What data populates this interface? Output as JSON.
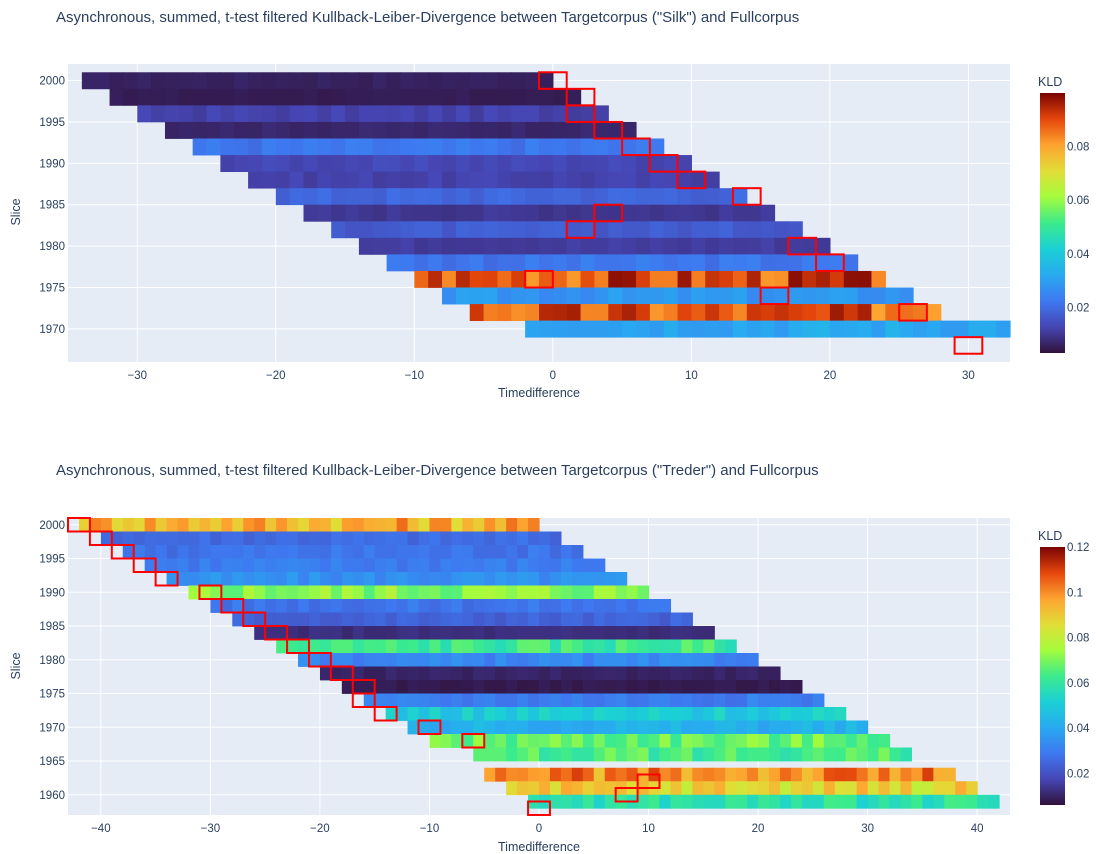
{
  "chart_data": [
    {
      "type": "heatmap",
      "title": "Asynchronous, summed, t-test filtered Kullback-Leiber-Divergence between Targetcorpus (\"Silk\") and Fullcorpus",
      "xlabel": "Timedifference",
      "ylabel": "Slice",
      "x_range": [
        -35,
        33
      ],
      "y_range": [
        1966,
        2002
      ],
      "x_ticks": [
        -30,
        -20,
        -10,
        0,
        10,
        20,
        30
      ],
      "y_ticks": [
        2000,
        1995,
        1990,
        1985,
        1980,
        1975,
        1970
      ],
      "colorbar": {
        "title": "KLD",
        "min": 0.003,
        "max": 0.1,
        "ticks": [
          0.02,
          0.04,
          0.06,
          0.08
        ]
      },
      "rows": [
        {
          "slice": 2000,
          "start": -34,
          "end": 0,
          "kld": 0.006
        },
        {
          "slice": 1998,
          "start": -32,
          "end": 2,
          "kld": 0.005
        },
        {
          "slice": 1996,
          "start": -30,
          "end": 4,
          "kld": 0.012
        },
        {
          "slice": 1994,
          "start": -28,
          "end": 6,
          "kld": 0.007
        },
        {
          "slice": 1992,
          "start": -26,
          "end": 8,
          "kld": 0.022
        },
        {
          "slice": 1990,
          "start": -24,
          "end": 10,
          "kld": 0.013
        },
        {
          "slice": 1988,
          "start": -22,
          "end": 12,
          "kld": 0.012
        },
        {
          "slice": 1986,
          "start": -20,
          "end": 14,
          "kld": 0.019
        },
        {
          "slice": 1984,
          "start": -18,
          "end": 16,
          "kld": 0.01
        },
        {
          "slice": 1982,
          "start": -16,
          "end": 18,
          "kld": 0.017
        },
        {
          "slice": 1980,
          "start": -14,
          "end": 20,
          "kld": 0.011
        },
        {
          "slice": 1978,
          "start": -12,
          "end": 22,
          "kld": 0.022
        },
        {
          "slice": 1976,
          "start": -10,
          "end": 24,
          "kld": 0.09
        },
        {
          "slice": 1974,
          "start": -8,
          "end": 26,
          "kld": 0.028
        },
        {
          "slice": 1972,
          "start": -6,
          "end": 28,
          "kld": 0.088
        },
        {
          "slice": 1970,
          "start": -2,
          "end": 33,
          "kld": 0.032
        }
      ],
      "highlights": [
        {
          "x": 0,
          "slice": 2000
        },
        {
          "x": 2,
          "slice": 1998
        },
        {
          "x": 2,
          "slice": 1996
        },
        {
          "x": 4,
          "slice": 1994
        },
        {
          "x": 6,
          "slice": 1992
        },
        {
          "x": 8,
          "slice": 1990
        },
        {
          "x": 10,
          "slice": 1988
        },
        {
          "x": 14,
          "slice": 1986
        },
        {
          "x": 4,
          "slice": 1984
        },
        {
          "x": 2,
          "slice": 1982
        },
        {
          "x": 18,
          "slice": 1980
        },
        {
          "x": 20,
          "slice": 1978
        },
        {
          "x": -1,
          "slice": 1976
        },
        {
          "x": 16,
          "slice": 1974
        },
        {
          "x": 26,
          "slice": 1972
        },
        {
          "x": 30,
          "slice": 1968
        }
      ]
    },
    {
      "type": "heatmap",
      "title": "Asynchronous, summed, t-test filtered Kullback-Leiber-Divergence between Targetcorpus (\"Treder\") and Fullcorpus",
      "xlabel": "Timedifference",
      "ylabel": "Slice",
      "x_range": [
        -43,
        43
      ],
      "y_range": [
        1957,
        2001
      ],
      "x_ticks": [
        -40,
        -30,
        -20,
        -10,
        0,
        10,
        20,
        30,
        40
      ],
      "y_ticks": [
        2000,
        1995,
        1990,
        1985,
        1980,
        1975,
        1970,
        1965,
        1960
      ],
      "colorbar": {
        "title": "KLD",
        "min": 0.006,
        "max": 0.12,
        "ticks": [
          0.02,
          0.04,
          0.06,
          0.08,
          0.1,
          0.12
        ]
      },
      "rows": [
        {
          "slice": 2000,
          "start": -42,
          "end": 0,
          "kld": 0.095
        },
        {
          "slice": 1998,
          "start": -40,
          "end": 2,
          "kld": 0.026
        },
        {
          "slice": 1996,
          "start": -38,
          "end": 4,
          "kld": 0.028
        },
        {
          "slice": 1994,
          "start": -36,
          "end": 6,
          "kld": 0.03
        },
        {
          "slice": 1992,
          "start": -34,
          "end": 8,
          "kld": 0.034
        },
        {
          "slice": 1990,
          "start": -32,
          "end": 10,
          "kld": 0.072
        },
        {
          "slice": 1988,
          "start": -30,
          "end": 12,
          "kld": 0.028
        },
        {
          "slice": 1986,
          "start": -28,
          "end": 14,
          "kld": 0.024
        },
        {
          "slice": 1984,
          "start": -26,
          "end": 16,
          "kld": 0.012
        },
        {
          "slice": 1982,
          "start": -24,
          "end": 18,
          "kld": 0.062
        },
        {
          "slice": 1980,
          "start": -22,
          "end": 20,
          "kld": 0.032
        },
        {
          "slice": 1978,
          "start": -20,
          "end": 22,
          "kld": 0.01
        },
        {
          "slice": 1976,
          "start": -18,
          "end": 24,
          "kld": 0.008
        },
        {
          "slice": 1974,
          "start": -16,
          "end": 26,
          "kld": 0.03
        },
        {
          "slice": 1972,
          "start": -14,
          "end": 28,
          "kld": 0.05
        },
        {
          "slice": 1970,
          "start": -12,
          "end": 30,
          "kld": 0.042
        },
        {
          "slice": 1968,
          "start": -10,
          "end": 32,
          "kld": 0.068
        },
        {
          "slice": 1966,
          "start": -6,
          "end": 34,
          "kld": 0.064
        },
        {
          "slice": 1963,
          "start": -5,
          "end": 38,
          "kld": 0.1
        },
        {
          "slice": 1961,
          "start": -3,
          "end": 40,
          "kld": 0.088
        },
        {
          "slice": 1959,
          "start": -1,
          "end": 42,
          "kld": 0.058
        }
      ],
      "highlights": [
        {
          "x": -42,
          "slice": 2000
        },
        {
          "x": -40,
          "slice": 1998
        },
        {
          "x": -38,
          "slice": 1996
        },
        {
          "x": -36,
          "slice": 1994
        },
        {
          "x": -34,
          "slice": 1992
        },
        {
          "x": -30,
          "slice": 1990
        },
        {
          "x": -28,
          "slice": 1988
        },
        {
          "x": -26,
          "slice": 1986
        },
        {
          "x": -24,
          "slice": 1984
        },
        {
          "x": -22,
          "slice": 1982
        },
        {
          "x": -20,
          "slice": 1980
        },
        {
          "x": -18,
          "slice": 1978
        },
        {
          "x": -16,
          "slice": 1976
        },
        {
          "x": -16,
          "slice": 1974
        },
        {
          "x": -14,
          "slice": 1972
        },
        {
          "x": -10,
          "slice": 1970
        },
        {
          "x": -6,
          "slice": 1968
        },
        {
          "x": 10,
          "slice": 1962
        },
        {
          "x": 8,
          "slice": 1960
        },
        {
          "x": 0,
          "slice": 1958
        }
      ]
    }
  ]
}
